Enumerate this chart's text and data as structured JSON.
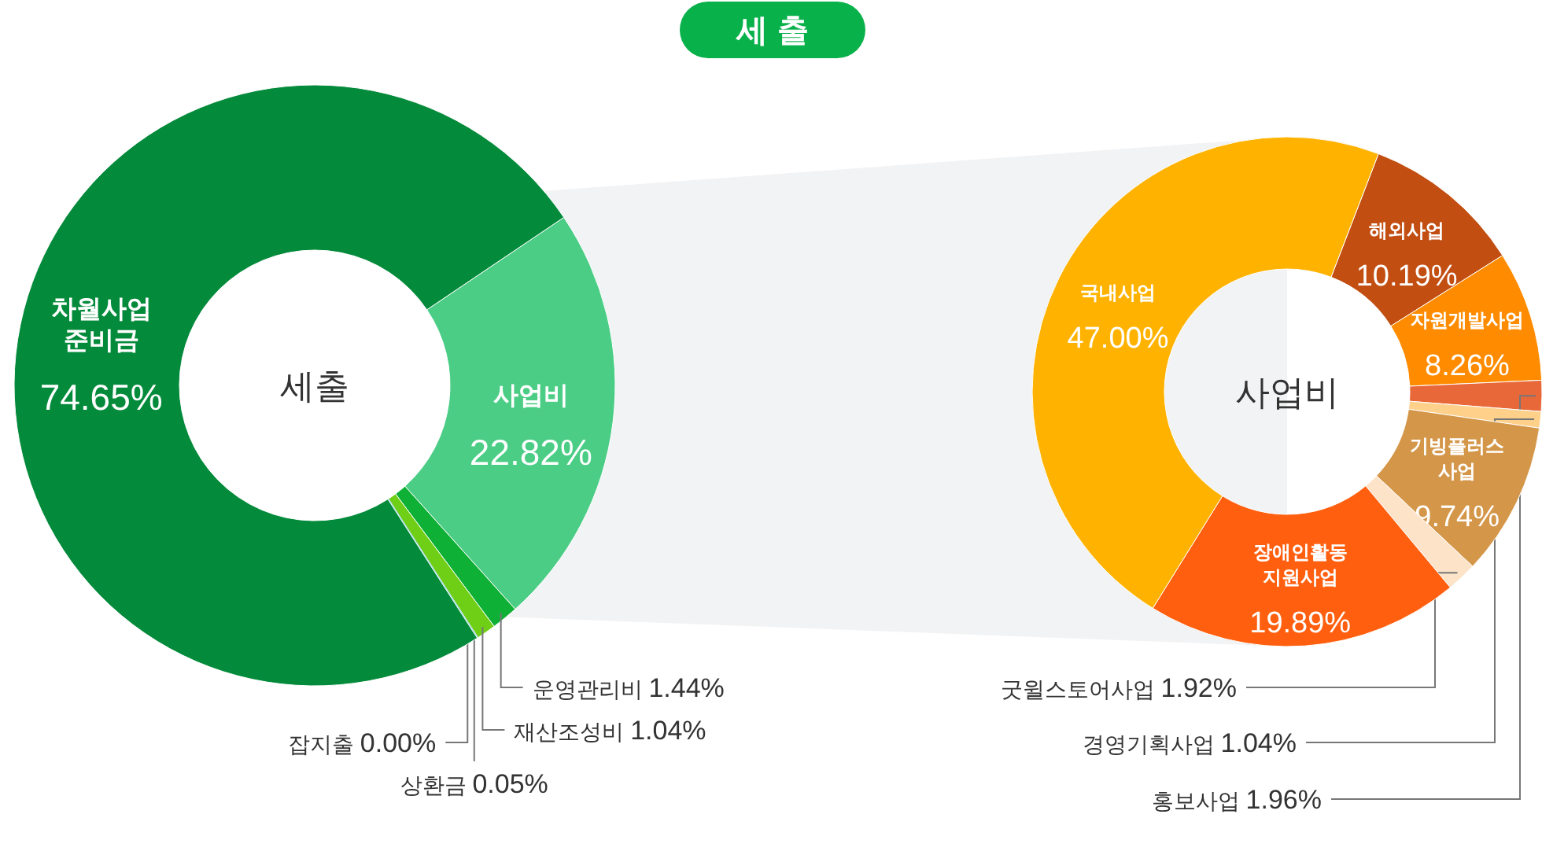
{
  "chart_data": [
    {
      "type": "donut",
      "title": "세 출",
      "annotations": [
        "세출"
      ],
      "categories": [
        "사업비",
        "운영관리비",
        "재산조성비",
        "상환금",
        "잡지출",
        "차월사업 준비금"
      ],
      "values": [
        22.82,
        1.44,
        1.04,
        0.05,
        0.0,
        74.65
      ],
      "value_labels": [
        "22.82%",
        "1.44%",
        "1.04%",
        "0.05%",
        "0.00%",
        "74.65%"
      ],
      "colors": [
        "#4bcd85",
        "#0eb035",
        "#6fcf16",
        "#7ec8b0",
        "#9bd8e0",
        "#038a3a"
      ]
    },
    {
      "type": "donut",
      "annotations": [
        "사업비"
      ],
      "categories": [
        "해외사업",
        "자원개발사업",
        "홍보사업",
        "경영기획사업",
        "기빙플러스 사업",
        "굿윌스토어사업",
        "장애인활동 지원사업",
        "국내사업"
      ],
      "values": [
        10.19,
        8.26,
        1.96,
        1.04,
        9.74,
        1.92,
        19.89,
        47.0
      ],
      "value_labels": [
        "10.19%",
        "8.26%",
        "1.96%",
        "1.04%",
        "9.74%",
        "1.92%",
        "19.89%",
        "47.00%"
      ],
      "colors": [
        "#c24e12",
        "#ff8c00",
        "#e8683a",
        "#ffd08a",
        "#d4974a",
        "#fde3c8",
        "#ff5f0e",
        "#ffb300"
      ]
    }
  ]
}
